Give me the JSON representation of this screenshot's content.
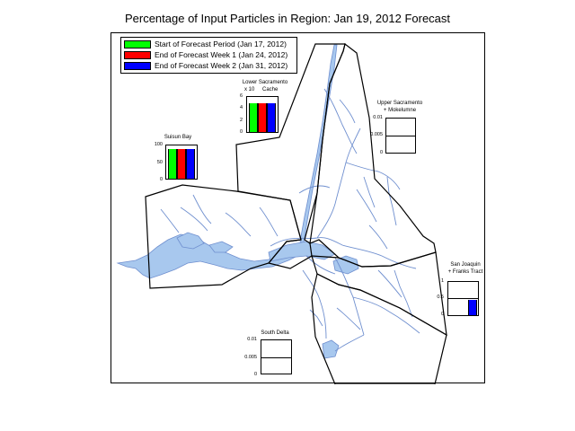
{
  "title": "Percentage of Input Particles in Region: Jan 19, 2012 Forecast",
  "legend": [
    {
      "label": "Start of Forecast Period (Jan 17, 2012)",
      "color": "#00ff00"
    },
    {
      "label": "End of Forecast Week 1 (Jan 24, 2012)",
      "color": "#ff0000"
    },
    {
      "label": "End of Forecast Week 2 (Jan 31, 2012)",
      "color": "#0000ff"
    }
  ],
  "colors": {
    "water": "#a8c8ee",
    "water_line": "#6f8fcf",
    "boundary": "#000000"
  },
  "regions": {
    "lower_sacramento": {
      "label": "Lower Sacramento",
      "sublabel": "Cache",
      "exp_label": "x 10",
      "ticks": [
        "6",
        "4",
        "2",
        "0"
      ],
      "ylim": [
        0,
        6
      ],
      "values": [
        5.0,
        5.0,
        5.0
      ]
    },
    "suisun_bay": {
      "label": "Suisun Bay",
      "ticks": [
        "100",
        "50",
        "0"
      ],
      "ylim": [
        0,
        100
      ],
      "values": [
        90,
        90,
        90
      ]
    },
    "upper_sacramento": {
      "label": "Upper Sacramento",
      "sublabel": "+ Mokelumne",
      "ticks": [
        "0.01",
        "0.005",
        "0"
      ],
      "ylim": [
        0,
        0.01
      ],
      "values": [
        0,
        0,
        0
      ]
    },
    "san_joaquin": {
      "label": "San Joaquin",
      "sublabel": "+ Franks Tract",
      "ticks": [
        "1",
        "0.5",
        "0"
      ],
      "ylim": [
        0,
        1
      ],
      "values": [
        0,
        0,
        0.45
      ]
    },
    "south_delta": {
      "label": "South Delta",
      "ticks": [
        "0.01",
        "0.005",
        "0"
      ],
      "ylim": [
        0,
        0.01
      ],
      "values": [
        0,
        0,
        0
      ]
    }
  }
}
